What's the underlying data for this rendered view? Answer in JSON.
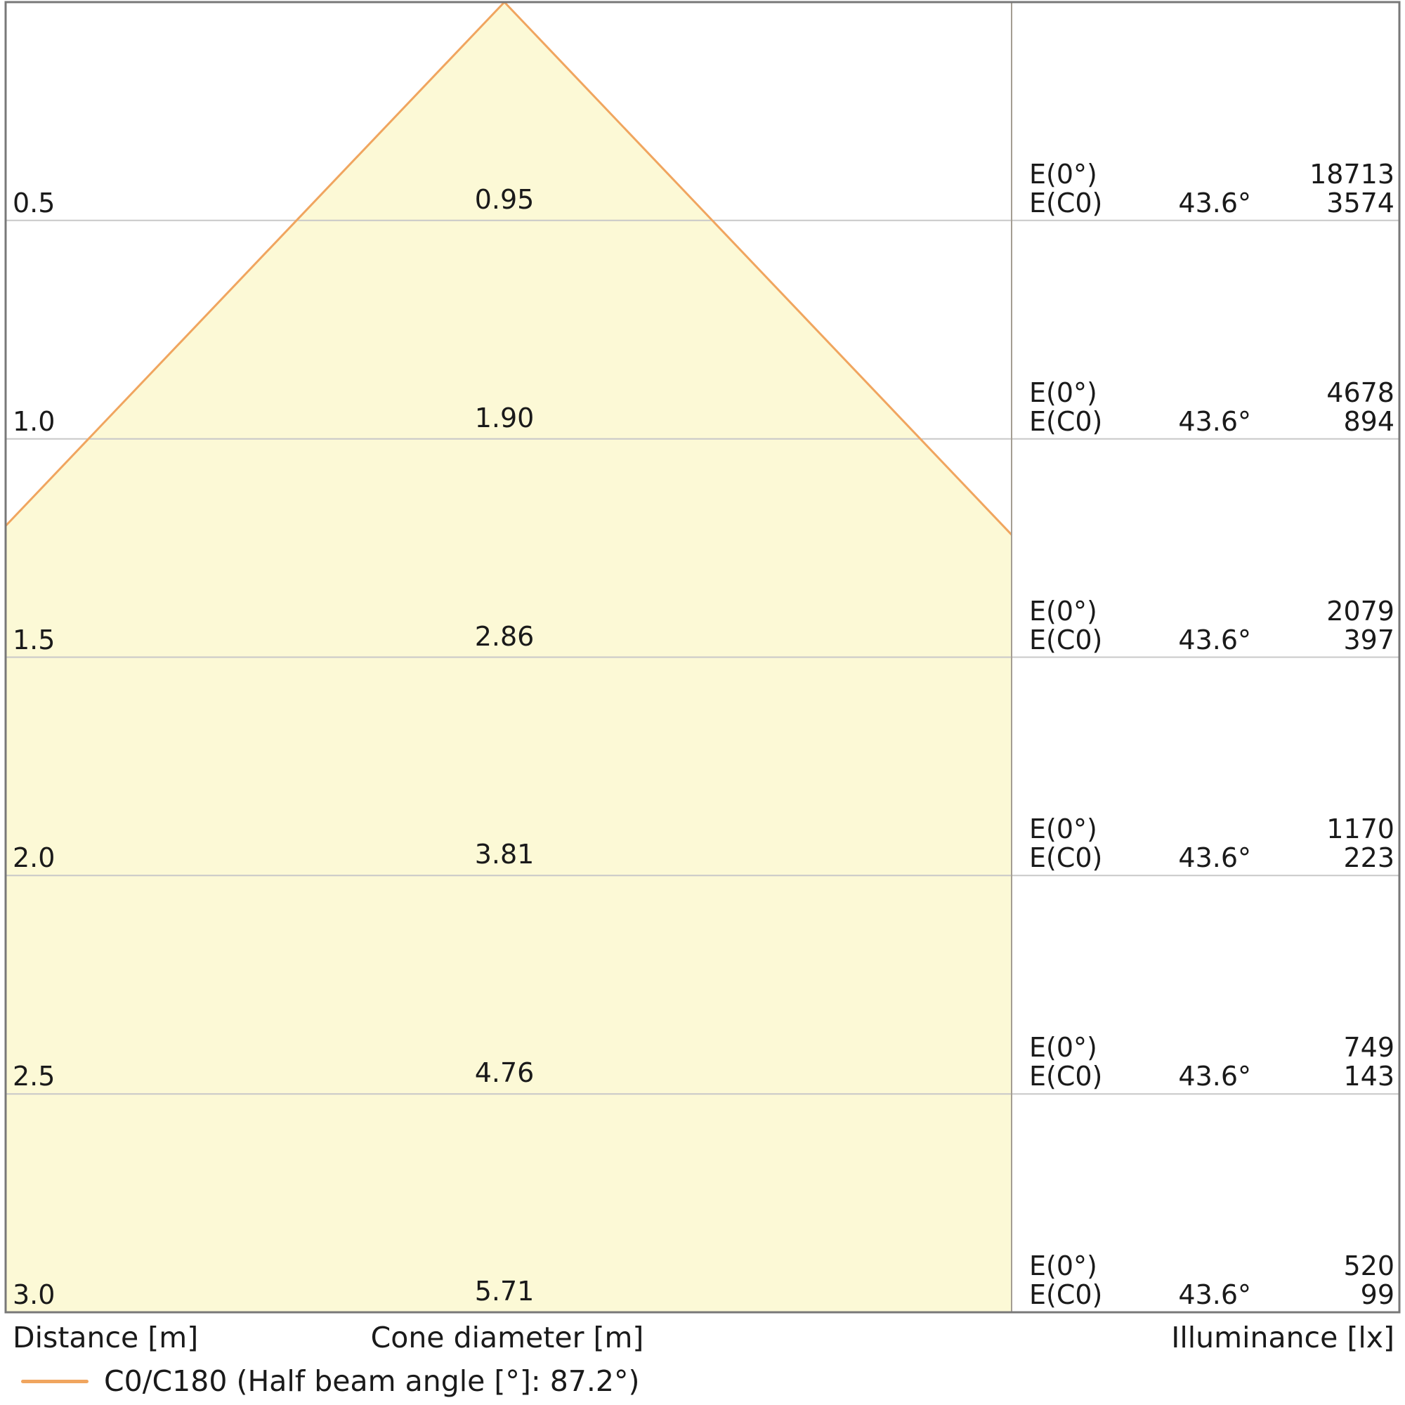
{
  "chart_data": {
    "type": "cone-diagram",
    "description": "Light cone diagram: beam diameter and illuminance vs distance",
    "axes": {
      "distance_axis_label": "Distance [m]",
      "cone_diameter_axis_label": "Cone diameter [m]",
      "illuminance_axis_label": "Illuminance [lx]",
      "distance_range": [
        0,
        3.0
      ],
      "grid": true
    },
    "legend": {
      "label": "C0/C180 (Half beam angle [°]: 87.2°)",
      "position": "bottom-left"
    },
    "half_beam_angle_full_deg": 87.2,
    "half_beam_angle_half_deg": 43.6,
    "e0_label": "E(0°)",
    "ec0_label": "E(C0)",
    "angle_label": "43.6°",
    "rows": [
      {
        "distance": "0.5",
        "cone_diameter": "0.95",
        "e0": "18713",
        "ec0": "3574"
      },
      {
        "distance": "1.0",
        "cone_diameter": "1.90",
        "e0": "4678",
        "ec0": "894"
      },
      {
        "distance": "1.5",
        "cone_diameter": "2.86",
        "e0": "2079",
        "ec0": "397"
      },
      {
        "distance": "2.0",
        "cone_diameter": "3.81",
        "e0": "1170",
        "ec0": "223"
      },
      {
        "distance": "2.5",
        "cone_diameter": "4.76",
        "e0": "749",
        "ec0": "143"
      },
      {
        "distance": "3.0",
        "cone_diameter": "5.71",
        "e0": "520",
        "ec0": "99"
      }
    ],
    "colors": {
      "cone_fill": "#fcf9d6",
      "cone_edge": "#f0a55f",
      "gridline": "#c8c8c8",
      "divider": "#a49d92",
      "border": "#787878",
      "text": "#1a1a1a",
      "background": "#ffffff"
    }
  }
}
